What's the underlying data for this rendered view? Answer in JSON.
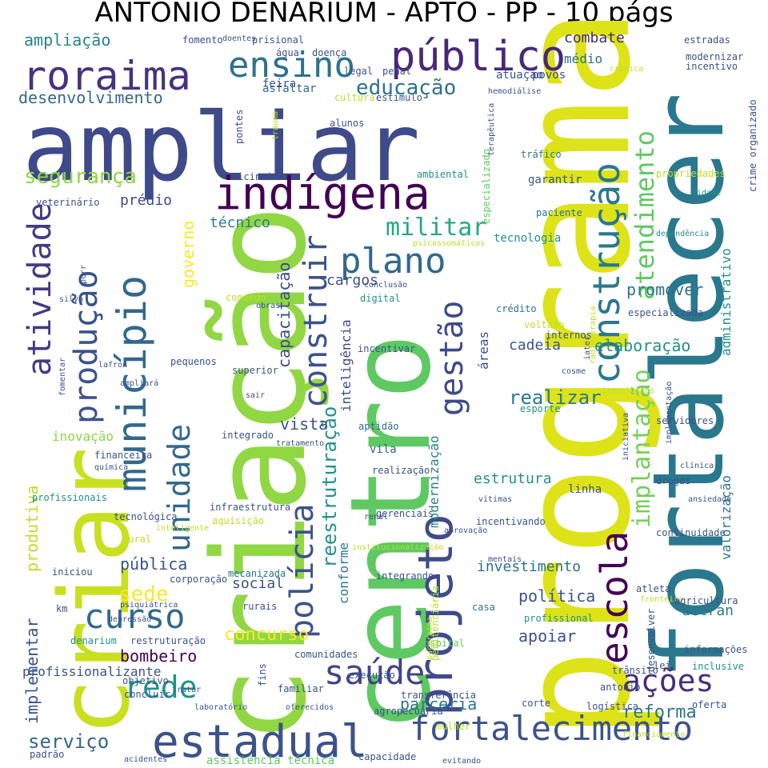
{
  "title": "ANTONIO DENARIUM - APTO - PP - 10 págs",
  "palette": {
    "dark_purple": "#440154",
    "indigo": "#3b528b",
    "blue": "#31688e",
    "teal": "#21918c",
    "green": "#35b779",
    "lime": "#90d743",
    "yellow": "#dde318"
  },
  "words": [
    {
      "text": "ampliar",
      "color": "#3e4a89"
    },
    {
      "text": "programa",
      "color": "#dde318"
    },
    {
      "text": "criação",
      "color": "#90d743"
    },
    {
      "text": "centro",
      "color": "#5ec962"
    },
    {
      "text": "fortalecer",
      "color": "#2a788e"
    },
    {
      "text": "criar",
      "color": "#c8e020"
    },
    {
      "text": "estadual",
      "color": "#3b528b"
    },
    {
      "text": "indígena",
      "color": "#440154"
    },
    {
      "text": "público",
      "color": "#482878"
    },
    {
      "text": "roraima",
      "color": "#46327e"
    },
    {
      "text": "ensino",
      "color": "#2c728e"
    },
    {
      "text": "projeto",
      "color": "#3e4a89"
    },
    {
      "text": "município",
      "color": "#31688e"
    },
    {
      "text": "construção",
      "color": "#2a788e"
    },
    {
      "text": "escola",
      "color": "#440154"
    },
    {
      "text": "fortalecimento",
      "color": "#3b528b"
    },
    {
      "text": "saúde",
      "color": "#414487"
    },
    {
      "text": "curso",
      "color": "#31688e"
    },
    {
      "text": "plano",
      "color": "#31688e"
    },
    {
      "text": "ações",
      "color": "#472d7b"
    },
    {
      "text": "polícia",
      "color": "#3b528b"
    },
    {
      "text": "rede",
      "color": "#21918c"
    },
    {
      "text": "gestão",
      "color": "#3e4a89"
    },
    {
      "text": "produção",
      "color": "#3b528b"
    },
    {
      "text": "atividade",
      "color": "#443983"
    },
    {
      "text": "construir",
      "color": "#3b528b"
    },
    {
      "text": "unidade",
      "color": "#31688e"
    },
    {
      "text": "atendimento",
      "color": "#5ec962"
    },
    {
      "text": "implantação",
      "color": "#73d056"
    },
    {
      "text": "militar",
      "color": "#22a884"
    },
    {
      "text": "educação",
      "color": "#2c728e"
    },
    {
      "text": "segurança",
      "color": "#90d743"
    },
    {
      "text": "desenvolvimento",
      "color": "#31688e"
    },
    {
      "text": "ampliação",
      "color": "#26828e"
    },
    {
      "text": "serviço",
      "color": "#31688e"
    },
    {
      "text": "concurso",
      "color": "#fde725"
    },
    {
      "text": "reforma",
      "color": "#2a788e"
    },
    {
      "text": "parceria",
      "color": "#2a788e"
    },
    {
      "text": "bombeiro",
      "color": "#440154"
    },
    {
      "text": "sede",
      "color": "#fde725"
    },
    {
      "text": "pública",
      "color": "#3b528b"
    },
    {
      "text": "realizar",
      "color": "#2a788e"
    },
    {
      "text": "promover",
      "color": "#2c728e"
    },
    {
      "text": "elaboração",
      "color": "#21918c"
    },
    {
      "text": "investimento",
      "color": "#2c728e"
    },
    {
      "text": "apoiar",
      "color": "#3b528b"
    },
    {
      "text": "política",
      "color": "#3b528b"
    },
    {
      "text": "estrutura",
      "color": "#21918c"
    },
    {
      "text": "produtiva",
      "color": "#bddf26"
    },
    {
      "text": "implementar",
      "color": "#3b528b"
    },
    {
      "text": "reestruturação",
      "color": "#21918c"
    },
    {
      "text": "capacitação",
      "color": "#3e4a89"
    },
    {
      "text": "governo",
      "color": "#fde725"
    },
    {
      "text": "técnico",
      "color": "#2a788e"
    },
    {
      "text": "prédio",
      "color": "#3e4a89"
    },
    {
      "text": "vista",
      "color": "#3b528b"
    },
    {
      "text": "cargos",
      "color": "#3b528b"
    },
    {
      "text": "cadeia",
      "color": "#3b528b"
    },
    {
      "text": "combate",
      "color": "#482878"
    },
    {
      "text": "médio",
      "color": "#2c728e"
    },
    {
      "text": "inovação",
      "color": "#90d743"
    },
    {
      "text": "social",
      "color": "#3b528b"
    },
    {
      "text": "administrativo",
      "color": "#21918c"
    },
    {
      "text": "valorização",
      "color": "#2c728e"
    },
    {
      "text": "modernização",
      "color": "#26828e"
    },
    {
      "text": "inteligência",
      "color": "#3e4a89"
    },
    {
      "text": "conforme",
      "color": "#2a788e"
    },
    {
      "text": "áreas",
      "color": "#3b528b"
    },
    {
      "text": "detran",
      "color": "#2a788e"
    },
    {
      "text": "profissionalizante",
      "color": "#3b528b"
    },
    {
      "text": "tecnologia",
      "color": "#21918c"
    },
    {
      "text": "feira",
      "color": "#3b528b"
    },
    {
      "text": "asfaltar",
      "color": "#31688e"
    },
    {
      "text": "atuação",
      "color": "#3b528b"
    },
    {
      "text": "povos",
      "color": "#3e4a89"
    },
    {
      "text": "garantir",
      "color": "#3b528b"
    },
    {
      "text": "linha",
      "color": "#3b528b"
    },
    {
      "text": "vila",
      "color": "#31688e"
    },
    {
      "text": "cultura",
      "color": "#bddf26"
    },
    {
      "text": "estímulo",
      "color": "#3b528b"
    },
    {
      "text": "alunos",
      "color": "#3b528b"
    },
    {
      "text": "legal",
      "color": "#3b528b"
    },
    {
      "text": "penal",
      "color": "#3b528b"
    },
    {
      "text": "digital",
      "color": "#21918c"
    },
    {
      "text": "crédito",
      "color": "#2c728e"
    },
    {
      "text": "voltado",
      "color": "#bddf26"
    },
    {
      "text": "internos",
      "color": "#3b528b"
    },
    {
      "text": "incentivar",
      "color": "#3b528b"
    },
    {
      "text": "esporte",
      "color": "#21918c"
    },
    {
      "text": "aptidão",
      "color": "#31688e"
    },
    {
      "text": "realização",
      "color": "#3b528b"
    },
    {
      "text": "gerenciais",
      "color": "#3b528b"
    },
    {
      "text": "incentivando",
      "color": "#3b528b"
    },
    {
      "text": "integrando",
      "color": "#3b528b"
    },
    {
      "text": "casa",
      "color": "#2c728e"
    },
    {
      "text": "hospital",
      "color": "#5ec962"
    },
    {
      "text": "penitenciária",
      "color": "#bddf26"
    },
    {
      "text": "comunidades",
      "color": "#3b528b"
    },
    {
      "text": "execução",
      "color": "#3b528b"
    },
    {
      "text": "transferência",
      "color": "#3b528b"
    },
    {
      "text": "agropecuária",
      "color": "#3b528b"
    },
    {
      "text": "mulher",
      "color": "#bddf26"
    },
    {
      "text": "capacidade",
      "color": "#3b528b"
    },
    {
      "text": "assistência técnica",
      "color": "#5ec962"
    },
    {
      "text": "concluir",
      "color": "#3b528b"
    },
    {
      "text": "familiar",
      "color": "#3b528b"
    },
    {
      "text": "tratar",
      "color": "#3b528b"
    },
    {
      "text": "fins",
      "color": "#3b528b"
    },
    {
      "text": "laboratório",
      "color": "#3b528b"
    },
    {
      "text": "oferecidos",
      "color": "#3b528b"
    },
    {
      "text": "evitando",
      "color": "#3b528b"
    },
    {
      "text": "acidentes",
      "color": "#3b528b"
    },
    {
      "text": "padrão",
      "color": "#3b528b"
    },
    {
      "text": "restruturação",
      "color": "#3b528b"
    },
    {
      "text": "denarium",
      "color": "#21918c"
    },
    {
      "text": "objetivo",
      "color": "#3b528b"
    },
    {
      "text": "km",
      "color": "#3b528b"
    },
    {
      "text": "iniciou",
      "color": "#3b528b"
    },
    {
      "text": "profissionais",
      "color": "#21918c"
    },
    {
      "text": "química",
      "color": "#3b528b"
    },
    {
      "text": "financeira",
      "color": "#3b528b"
    },
    {
      "text": "tecnológica",
      "color": "#3b528b"
    },
    {
      "text": "rural",
      "color": "#bddf26"
    },
    {
      "text": "infraestrutura",
      "color": "#3b528b"
    },
    {
      "text": "aquisição",
      "color": "#bddf26"
    },
    {
      "text": "corporação",
      "color": "#3b528b"
    },
    {
      "text": "mecanizada",
      "color": "#2c728e"
    },
    {
      "text": "rurais",
      "color": "#3b528b"
    },
    {
      "text": "psiquiátrica",
      "color": "#3b528b"
    },
    {
      "text": "inteligente",
      "color": "#bddf26"
    },
    {
      "text": "depressão",
      "color": "#3b528b"
    },
    {
      "text": "integrado",
      "color": "#3b528b"
    },
    {
      "text": "superior",
      "color": "#3b528b"
    },
    {
      "text": "pequenos",
      "color": "#3b528b"
    },
    {
      "text": "sair",
      "color": "#3b528b"
    },
    {
      "text": "tratamento",
      "color": "#3b528b"
    },
    {
      "text": "comando",
      "color": "#bddf26"
    },
    {
      "text": "obras",
      "color": "#3b528b"
    },
    {
      "text": "conclusão",
      "color": "#3b528b"
    },
    {
      "text": "psicossomáticos",
      "color": "#bddf26"
    },
    {
      "text": "fomentar",
      "color": "#3b528b"
    },
    {
      "text": "ampliará",
      "color": "#3b528b"
    },
    {
      "text": "lafron",
      "color": "#3b528b"
    },
    {
      "text": "silva",
      "color": "#3b528b"
    },
    {
      "text": "pcrr",
      "color": "#3b528b"
    },
    {
      "text": "veterinário",
      "color": "#3b528b"
    },
    {
      "text": "vicinais",
      "color": "#3b528b"
    },
    {
      "text": "ambiental",
      "color": "#21918c"
    },
    {
      "text": "pontes",
      "color": "#3b528b"
    },
    {
      "text": "trauma",
      "color": "#bddf26"
    },
    {
      "text": "água",
      "color": "#3b528b"
    },
    {
      "text": "doença",
      "color": "#3b528b"
    },
    {
      "text": "fomento",
      "color": "#3b528b"
    },
    {
      "text": "doentes",
      "color": "#3b528b"
    },
    {
      "text": "prisional",
      "color": "#3b528b"
    },
    {
      "text": "hemodiálise",
      "color": "#3b528b"
    },
    {
      "text": "terapêutica",
      "color": "#3b528b"
    },
    {
      "text": "crônica",
      "color": "#bddf26"
    },
    {
      "text": "especializado",
      "color": "#5ec962"
    },
    {
      "text": "tráfico",
      "color": "#2c728e"
    },
    {
      "text": "paciente",
      "color": "#2c728e"
    },
    {
      "text": "estradas",
      "color": "#3b528b"
    },
    {
      "text": "modernizar",
      "color": "#3b528b"
    },
    {
      "text": "incentivo",
      "color": "#3b528b"
    },
    {
      "text": "crime organizado",
      "color": "#3b528b"
    },
    {
      "text": "propriedades",
      "color": "#bddf26"
    },
    {
      "text": "cidade",
      "color": "#21918c"
    },
    {
      "text": "dependência",
      "color": "#21918c"
    },
    {
      "text": "especializada",
      "color": "#3b528b"
    },
    {
      "text": "radioterapia",
      "color": "#bddf26"
    },
    {
      "text": "cosme",
      "color": "#3b528b"
    },
    {
      "text": "transtornos",
      "color": "#bddf26"
    },
    {
      "text": "iater",
      "color": "#3b528b"
    },
    {
      "text": "servidores",
      "color": "#3b528b"
    },
    {
      "text": "implementação",
      "color": "#3b528b"
    },
    {
      "text": "iniciativa",
      "color": "#3b528b"
    },
    {
      "text": "clínica",
      "color": "#3b528b"
    },
    {
      "text": "drogas",
      "color": "#3b528b"
    },
    {
      "text": "ansiedade",
      "color": "#3b528b"
    },
    {
      "text": "continuidade",
      "color": "#3b528b"
    },
    {
      "text": "vítimas",
      "color": "#3b528b"
    },
    {
      "text": "renal",
      "color": "#3b528b"
    },
    {
      "text": "aprovação",
      "color": "#3b528b"
    },
    {
      "text": "institucionalização",
      "color": "#bddf26"
    },
    {
      "text": "mentais",
      "color": "#3b528b"
    },
    {
      "text": "pacaraima",
      "color": "#bddf26"
    },
    {
      "text": "atleta",
      "color": "#3b528b"
    },
    {
      "text": "fronteira",
      "color": "#bddf26"
    },
    {
      "text": "agricultura",
      "color": "#3b528b"
    },
    {
      "text": "profissional",
      "color": "#21918c"
    },
    {
      "text": "desenvolver",
      "color": "#3b528b"
    },
    {
      "text": "informações",
      "color": "#3b528b"
    },
    {
      "text": "inclusive",
      "color": "#21918c"
    },
    {
      "text": "trânsito",
      "color": "#3b528b"
    },
    {
      "text": "lei",
      "color": "#3b528b"
    },
    {
      "text": "antonio",
      "color": "#3b528b"
    },
    {
      "text": "logística",
      "color": "#3b528b"
    },
    {
      "text": "corte",
      "color": "#3b528b"
    },
    {
      "text": "oferta",
      "color": "#3b528b"
    },
    {
      "text": "financiamento",
      "color": "#bddf26"
    }
  ]
}
